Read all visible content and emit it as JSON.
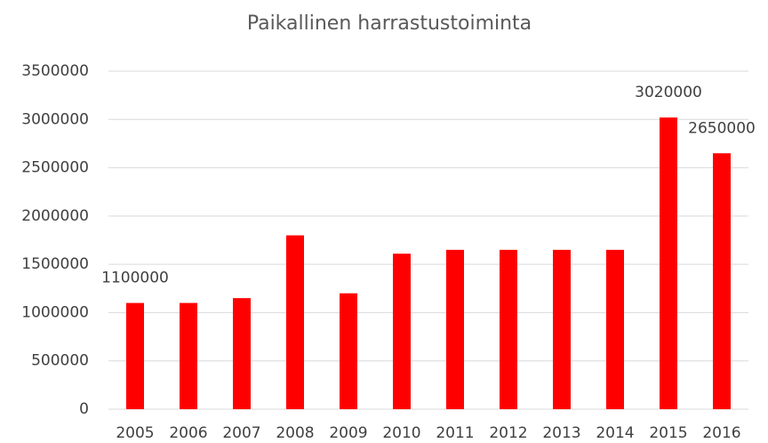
{
  "chart_data": {
    "type": "bar",
    "title": "Paikallinen harrastustoiminta",
    "categories": [
      "2005",
      "2006",
      "2007",
      "2008",
      "2009",
      "2010",
      "2011",
      "2012",
      "2013",
      "2014",
      "2015",
      "2016"
    ],
    "values": [
      1100000,
      1100000,
      1150000,
      1800000,
      1200000,
      1610000,
      1650000,
      1650000,
      1650000,
      1650000,
      3020000,
      2650000
    ],
    "value_labels": [
      "1100000",
      null,
      null,
      null,
      null,
      null,
      null,
      null,
      null,
      null,
      "3020000",
      "2650000"
    ],
    "color": "#ff0000",
    "ylim": [
      0,
      3500000
    ],
    "yticks": [
      0,
      500000,
      1000000,
      1500000,
      2000000,
      2500000,
      3000000,
      3500000
    ],
    "grid": true
  }
}
